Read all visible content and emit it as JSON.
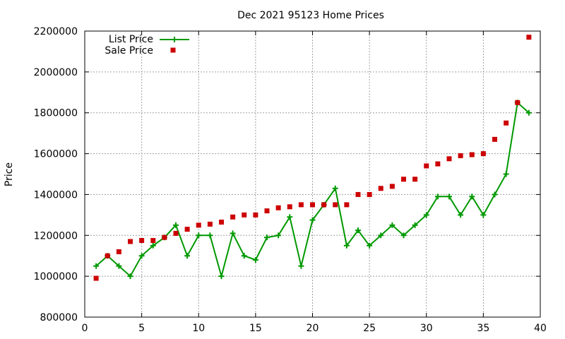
{
  "chart_data": {
    "type": "line",
    "title": "Dec 2021 95123 Home Prices",
    "xlabel": "",
    "ylabel": "Price",
    "xlim": [
      0,
      40
    ],
    "ylim": [
      800000,
      2200000
    ],
    "xticks": [
      0,
      5,
      10,
      15,
      20,
      25,
      30,
      35,
      40
    ],
    "yticks": [
      800000,
      1000000,
      1200000,
      1400000,
      1600000,
      1800000,
      2000000,
      2200000
    ],
    "grid": true,
    "legend_position": "top-left",
    "series": [
      {
        "name": "List Price",
        "style": "line+cross",
        "color": "#009900",
        "x": [
          1,
          2,
          3,
          4,
          5,
          6,
          7,
          8,
          9,
          10,
          11,
          12,
          13,
          14,
          15,
          16,
          17,
          18,
          19,
          20,
          21,
          22,
          23,
          24,
          25,
          26,
          27,
          28,
          29,
          30,
          31,
          32,
          33,
          34,
          35,
          36,
          37,
          38,
          39
        ],
        "y": [
          1050000,
          1100000,
          1050000,
          1000000,
          1100000,
          1150000,
          1190000,
          1250000,
          1100000,
          1200000,
          1200000,
          1000000,
          1210000,
          1100000,
          1080000,
          1190000,
          1200000,
          1290000,
          1050000,
          1275000,
          1350000,
          1430000,
          1150000,
          1225000,
          1150000,
          1200000,
          1250000,
          1200000,
          1250000,
          1300000,
          1390000,
          1390000,
          1300000,
          1390000,
          1300000,
          1400000,
          1500000,
          1850000,
          1800000
        ]
      },
      {
        "name": "Sale Price",
        "style": "square-points",
        "color": "#cc0000",
        "x": [
          1,
          2,
          3,
          4,
          5,
          6,
          7,
          8,
          9,
          10,
          11,
          12,
          13,
          14,
          15,
          16,
          17,
          18,
          19,
          20,
          21,
          22,
          23,
          24,
          25,
          26,
          27,
          28,
          29,
          30,
          31,
          32,
          33,
          34,
          35,
          36,
          37,
          38,
          39
        ],
        "y": [
          990000,
          1100000,
          1120000,
          1170000,
          1175000,
          1175000,
          1190000,
          1210000,
          1230000,
          1250000,
          1255000,
          1265000,
          1290000,
          1300000,
          1300000,
          1320000,
          1335000,
          1340000,
          1350000,
          1350000,
          1350000,
          1350000,
          1350000,
          1400000,
          1400000,
          1430000,
          1440000,
          1475000,
          1475000,
          1540000,
          1550000,
          1575000,
          1590000,
          1595000,
          1600000,
          1670000,
          1750000,
          1850000,
          2170000
        ]
      }
    ]
  }
}
